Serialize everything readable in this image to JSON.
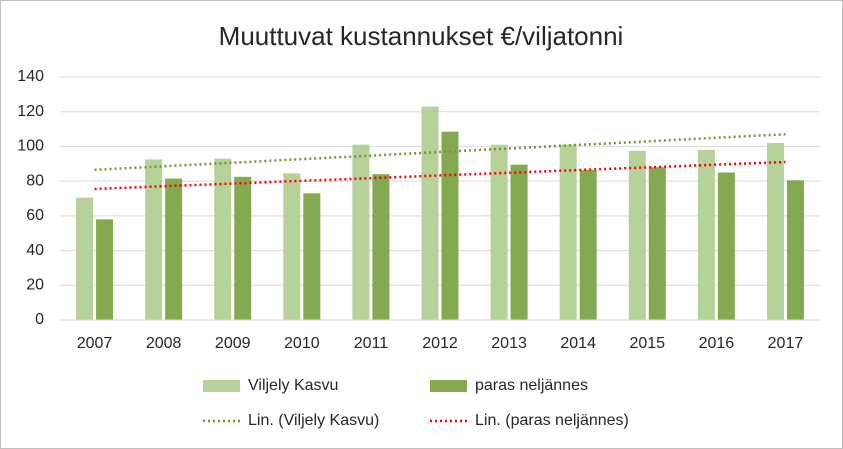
{
  "chart_data": {
    "type": "bar",
    "title": "Muuttuvat kustannukset €/viljatonni",
    "categories": [
      "2007",
      "2008",
      "2009",
      "2010",
      "2011",
      "2012",
      "2013",
      "2014",
      "2015",
      "2016",
      "2017"
    ],
    "series": [
      {
        "name": "Viljely Kasvu",
        "type": "bar",
        "color": "#b6d19a",
        "values": [
          70.5,
          92.5,
          93,
          84.5,
          101,
          123,
          101,
          101,
          97.5,
          98,
          102
        ]
      },
      {
        "name": "paras neljännes",
        "type": "bar",
        "color": "#85a951",
        "values": [
          58,
          81.5,
          82.5,
          73,
          84,
          108.5,
          89.5,
          86.5,
          88,
          85,
          80.5
        ]
      },
      {
        "name": "Lin. (Viljely Kasvu)",
        "type": "line",
        "style": "dotted",
        "color": "#77933c",
        "values": [
          86.5,
          88.6,
          90.6,
          92.7,
          94.7,
          96.8,
          98.8,
          100.9,
          102.9,
          105.0,
          107.0
        ]
      },
      {
        "name": "Lin. (paras neljännes)",
        "type": "line",
        "style": "dotted",
        "color": "#ff0000",
        "values": [
          75.5,
          77.1,
          78.6,
          80.2,
          81.7,
          83.3,
          84.8,
          86.4,
          87.9,
          89.5,
          91.0
        ]
      }
    ],
    "ylim": [
      0,
      140
    ],
    "yticks": [
      0,
      20,
      40,
      60,
      80,
      100,
      120,
      140
    ],
    "grid": true
  }
}
